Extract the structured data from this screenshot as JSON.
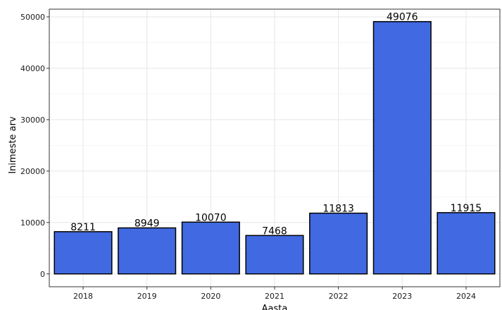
{
  "chart_data": {
    "type": "bar",
    "title": "",
    "xlabel": "Aasta",
    "ylabel": "Inimeste arv",
    "categories": [
      "2018",
      "2019",
      "2020",
      "2021",
      "2022",
      "2023",
      "2024"
    ],
    "values": [
      8211,
      8949,
      10070,
      7468,
      11813,
      49076,
      11915
    ],
    "data_labels": [
      "8211",
      "8949",
      "10070",
      "7468",
      "11813",
      "49076",
      "11915"
    ],
    "ylim": [
      0,
      50000
    ],
    "yticks": [
      0,
      10000,
      20000,
      30000,
      40000,
      50000
    ],
    "ytick_labels": [
      "0",
      "10000",
      "20000",
      "30000",
      "40000",
      "50000"
    ],
    "grid": true,
    "legend": "none",
    "colors": {
      "bar_fill": "#4169e1",
      "bar_stroke": "#000000",
      "grid": "#e6e6e6",
      "panel_border": "#333333"
    }
  }
}
